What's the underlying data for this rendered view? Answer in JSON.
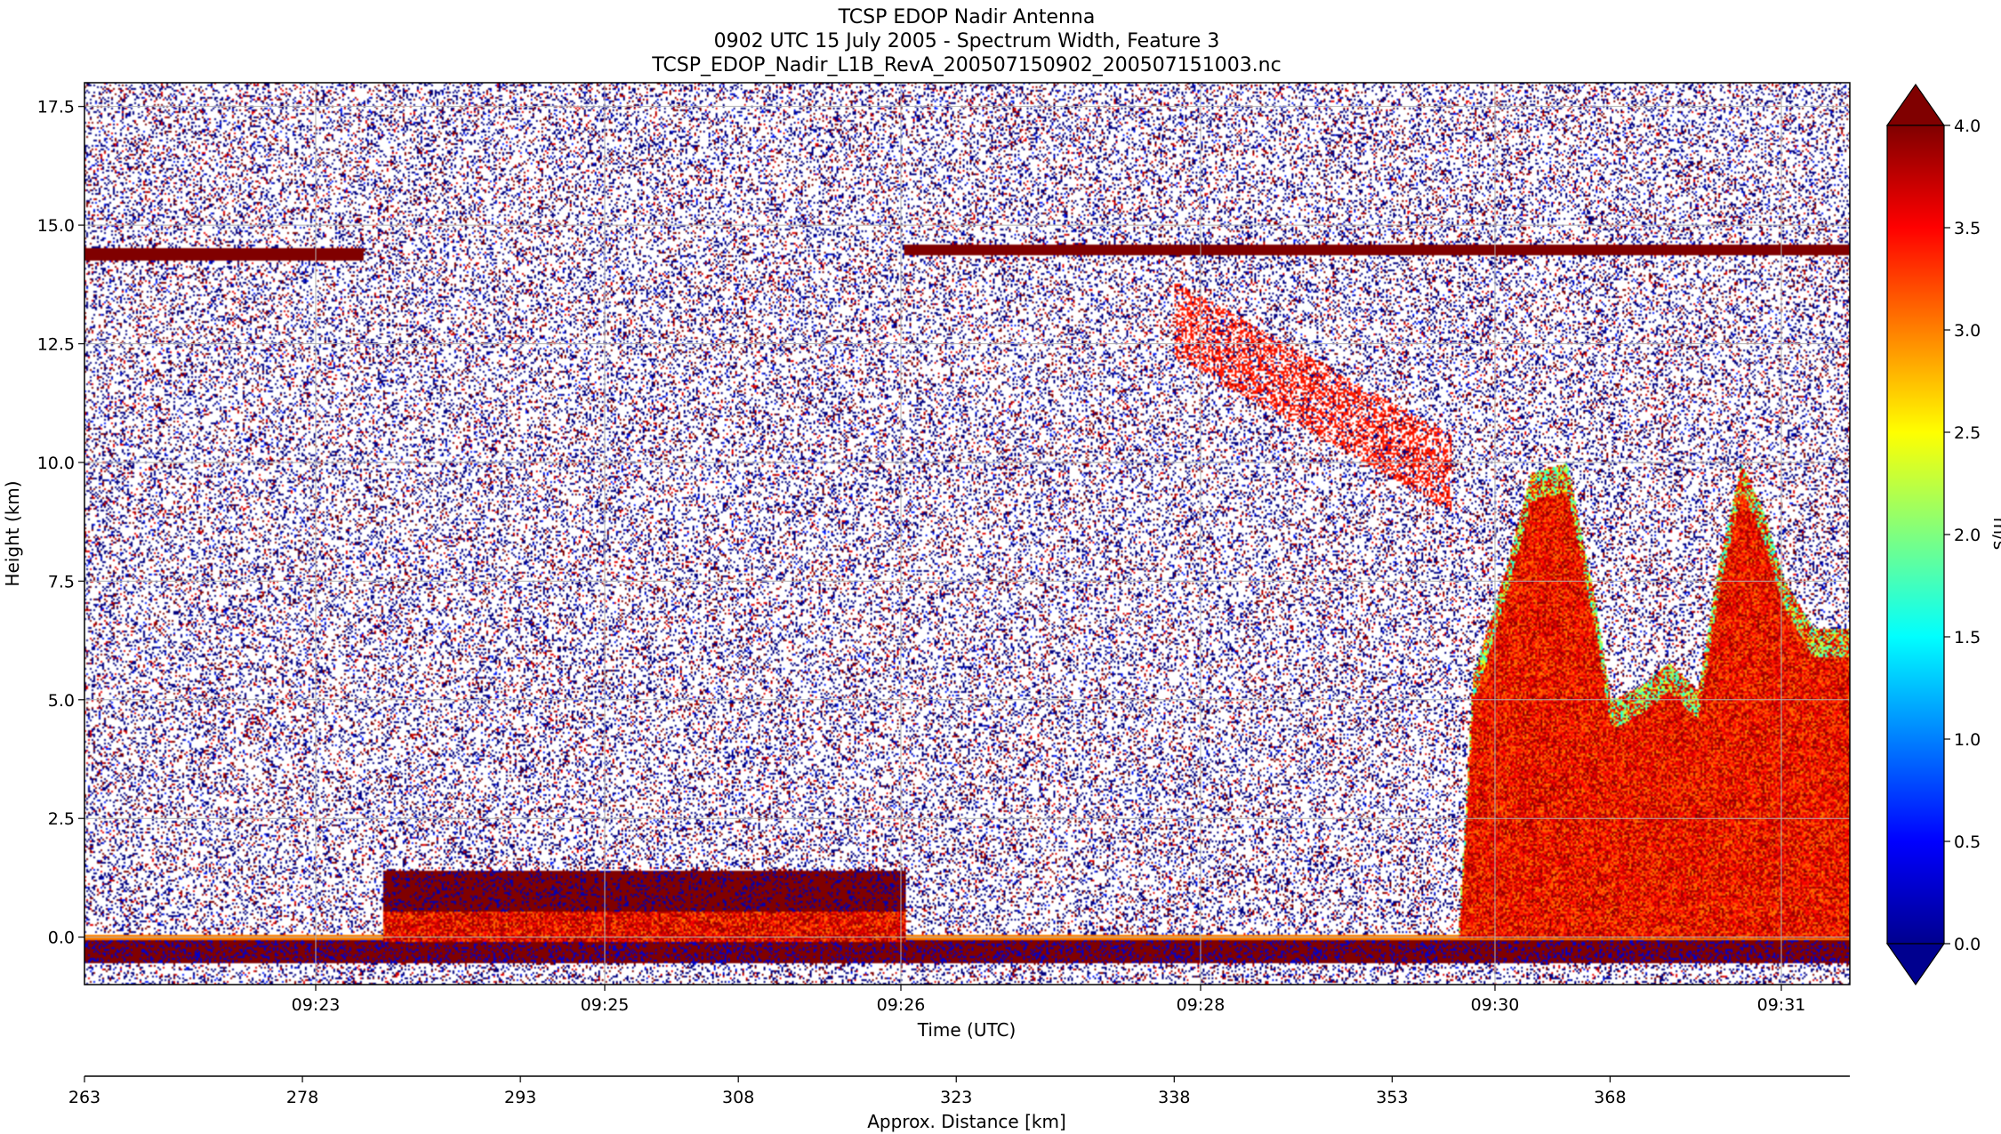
{
  "chart_data": {
    "type": "heatmap",
    "title_lines": [
      "TCSP EDOP Nadir Antenna",
      "0902 UTC 15 July 2005 - Spectrum Width, Feature 3",
      "TCSP_EDOP_Nadir_L1B_RevA_200507150902_200507151003.nc"
    ],
    "xlabel": "Time (UTC)",
    "ylabel": "Height (km)",
    "x_ticks": [
      "09:23",
      "09:25",
      "09:26",
      "09:28",
      "09:30",
      "09:31"
    ],
    "y_ticks": [
      "0.0",
      "2.5",
      "5.0",
      "7.5",
      "10.0",
      "12.5",
      "15.0",
      "17.5"
    ],
    "ylim": [
      -1.0,
      18.0
    ],
    "grid": true,
    "x2label": "Approx. Distance [km]",
    "x2_ticks": [
      "263",
      "278",
      "293",
      "308",
      "323",
      "338",
      "353",
      "368"
    ],
    "x2lim": [
      263,
      384.5
    ],
    "colorbar": {
      "label": "m/s",
      "ticks": [
        "0.0",
        "0.5",
        "1.0",
        "1.5",
        "2.0",
        "2.5",
        "3.0",
        "3.5",
        "4.0"
      ],
      "range": [
        0.0,
        4.0
      ],
      "colormap": "jet",
      "extend": "both"
    },
    "features": [
      {
        "name": "aircraft altitude echo (upper)",
        "height_km": 14.4,
        "x_km": [
          263,
          282.2
        ]
      },
      {
        "name": "aircraft altitude echo (upper)",
        "height_km": 14.5,
        "x_km": [
          319.4,
          384.5
        ]
      },
      {
        "name": "surface echo",
        "height_km": 0.0,
        "x_km": [
          263,
          384.5
        ]
      },
      {
        "name": "low-level echo layer",
        "height_km": [
          0.0,
          1.4
        ],
        "x_km": [
          283.5,
          319.5
        ]
      },
      {
        "name": "convective towers",
        "height_km": [
          0.0,
          12.0
        ],
        "x_km": [
          358,
          384.5
        ]
      }
    ]
  }
}
